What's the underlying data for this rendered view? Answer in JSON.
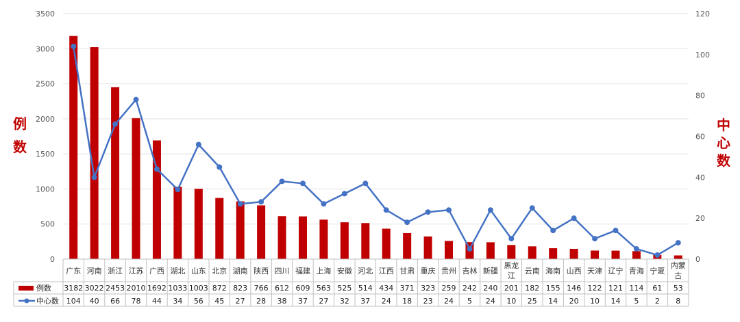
{
  "chart_data": {
    "type": "bar",
    "categories": [
      "广东",
      "河南",
      "浙江",
      "江苏",
      "广西",
      "湖北",
      "山东",
      "北京",
      "湖南",
      "陕西",
      "四川",
      "福建",
      "上海",
      "安徽",
      "河北",
      "江西",
      "甘肃",
      "重庆",
      "贵州",
      "吉林",
      "新疆",
      "黑龙江",
      "云南",
      "海南",
      "山西",
      "天津",
      "辽宁",
      "青海",
      "宁夏",
      "内蒙古"
    ],
    "series": [
      {
        "name": "例数",
        "type": "bar",
        "axis": "left",
        "color": "#c00000",
        "values": [
          3182,
          3022,
          2453,
          2010,
          1692,
          1033,
          1003,
          872,
          823,
          766,
          612,
          609,
          563,
          525,
          514,
          434,
          371,
          323,
          259,
          242,
          240,
          201,
          182,
          155,
          146,
          122,
          121,
          114,
          61,
          53
        ]
      },
      {
        "name": "中心数",
        "type": "line",
        "axis": "right",
        "color": "#4472c4",
        "values": [
          104,
          40,
          66,
          78,
          44,
          34,
          56,
          45,
          27,
          28,
          38,
          37,
          27,
          32,
          37,
          24,
          18,
          23,
          24,
          5,
          24,
          10,
          25,
          14,
          20,
          10,
          14,
          5,
          2,
          8
        ]
      }
    ],
    "left_axis": {
      "label_chars": [
        "例",
        "数"
      ],
      "min": 0,
      "max": 3500,
      "step": 500,
      "ticks": [
        "0",
        "500",
        "1000",
        "1500",
        "2000",
        "2500",
        "3000",
        "3500"
      ]
    },
    "right_axis": {
      "label_chars": [
        "中",
        "心",
        "数"
      ],
      "min": 0,
      "max": 120,
      "step": 20,
      "ticks": [
        "0",
        "20",
        "40",
        "60",
        "80",
        "100",
        "120"
      ]
    },
    "grid": true,
    "legend": "bottom-table",
    "data_table": true
  }
}
